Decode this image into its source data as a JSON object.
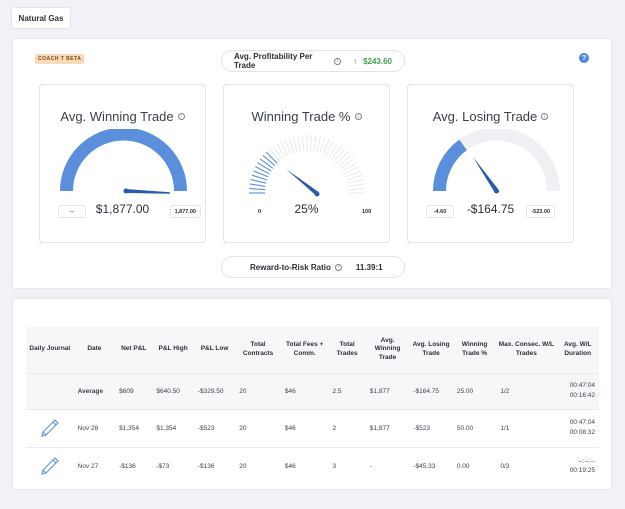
{
  "tab": {
    "label": "Natural Gas"
  },
  "badge": "COACH T BETA",
  "help_icon": "?",
  "avg_profit": {
    "label": "Avg. Profitability Per Trade",
    "arrow": "↑",
    "value": "$243.60"
  },
  "rr": {
    "label": "Reward-to-Risk Ratio",
    "value": "11.39:1"
  },
  "gauges": {
    "win": {
      "title": "Avg. Winning Trade",
      "value": "$1,877.00",
      "left_box": "--",
      "right_box": "1,877.00",
      "fill": 1.0,
      "color": "#5b8fdc"
    },
    "pct": {
      "title": "Winning Trade %",
      "value": "25%",
      "min": "0",
      "max": "100",
      "level": 0.25,
      "color": "#5b8fdc"
    },
    "loss": {
      "title": "Avg. Losing Trade",
      "value": "-$164.75",
      "left_box": "-4.60",
      "right_box": "-523.00",
      "fill": 0.3,
      "color": "#5b8fdc"
    }
  },
  "table": {
    "headers": [
      "Daily Journal",
      "Date",
      "Net P&L",
      "P&L High",
      "P&L Low",
      "Total Contracts",
      "Total Fees + Comm.",
      "Total Trades",
      "Avg. Winning Trade",
      "Avg. Losing Trade",
      "Winning Trade %",
      "Max. Consec. W/L Trades",
      "Avg. W/L Duration"
    ],
    "average": {
      "label": "Average",
      "net": "$609",
      "high": "$640.50",
      "low": "-$329.50",
      "contracts": "20",
      "fees": "$46",
      "trades": "2.5",
      "avg_win": "$1,877",
      "avg_loss": "-$164.75",
      "win_pct": "25.00",
      "consec": "1/2",
      "dur_w": "00:47:04",
      "dur_l": "00:16:42"
    },
    "rows": [
      {
        "date": "Nov 28",
        "net": "$1,354",
        "high": "$1,354",
        "low": "-$523",
        "contracts": "20",
        "fees": "$46",
        "trades": "2",
        "avg_win": "$1,877",
        "avg_loss": "-$523",
        "win_pct": "50.00",
        "consec": "1/1",
        "dur_w": "00:47:04",
        "dur_l": "00:08:32"
      },
      {
        "date": "Nov 27",
        "net": "-$136",
        "high": "-$73",
        "low": "-$136",
        "contracts": "20",
        "fees": "$46",
        "trades": "3",
        "avg_win": "-",
        "avg_loss": "-$45.33",
        "win_pct": "0.00",
        "consec": "0/3",
        "dur_w": "--:--:--",
        "dur_l": "00:19:25"
      }
    ]
  }
}
